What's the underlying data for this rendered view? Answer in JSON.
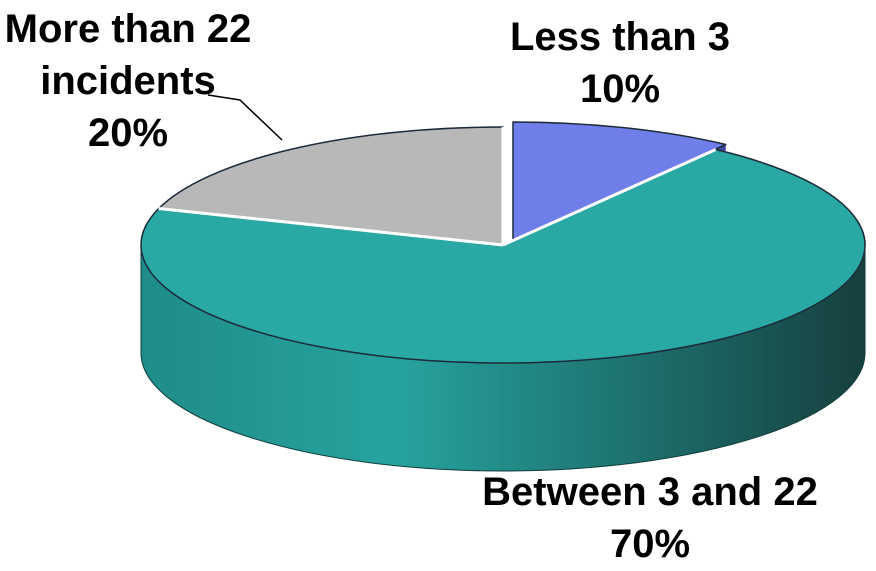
{
  "chart_data": {
    "type": "pie",
    "style": "3d",
    "slices": [
      {
        "label_lines": [
          "Less than 3"
        ],
        "value": 10,
        "value_label": "10%",
        "color": "#6f7ee8",
        "exploded": true
      },
      {
        "label_lines": [
          "Between 3 and 22"
        ],
        "value": 70,
        "value_label": "70%",
        "color": "#2aa8a4",
        "exploded": false
      },
      {
        "label_lines": [
          "More than 22",
          "incidents"
        ],
        "value": 20,
        "value_label": "20%",
        "color": "#b8b8b8",
        "exploded": false
      }
    ],
    "legend": "none"
  }
}
